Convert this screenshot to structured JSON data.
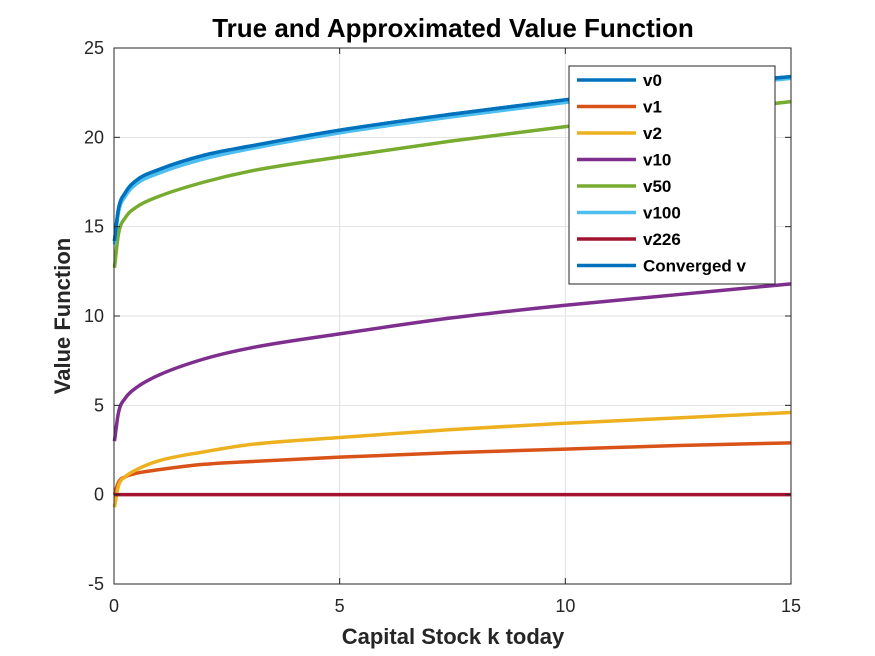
{
  "chart_data": {
    "type": "line",
    "title": "True and Approximated Value Function",
    "xlabel": "Capital Stock k today",
    "ylabel": "Value Function",
    "xlim": [
      0,
      15
    ],
    "ylim": [
      -5,
      25
    ],
    "xticks": [
      0,
      5,
      10,
      15
    ],
    "xtick_labels": [
      "0",
      "5",
      "10",
      "15"
    ],
    "yticks": [
      -5,
      0,
      5,
      10,
      15,
      20,
      25
    ],
    "ytick_labels": [
      "-5",
      "0",
      "5",
      "10",
      "15",
      "20",
      "25"
    ],
    "grid": true,
    "legend_position": "top-right",
    "x": [
      0.01,
      0.1,
      0.25,
      0.5,
      1,
      2,
      3,
      5,
      7.5,
      10,
      12.5,
      15
    ],
    "series": [
      {
        "name": "v0",
        "color": "#0072BD",
        "values": [
          14.2,
          16.0,
          16.9,
          17.6,
          18.2,
          19.0,
          19.5,
          20.4,
          21.3,
          22.1,
          22.8,
          23.4
        ]
      },
      {
        "name": "v1",
        "color": "#D95319",
        "values": [
          0.0,
          0.7,
          1.0,
          1.2,
          1.4,
          1.7,
          1.85,
          2.1,
          2.35,
          2.55,
          2.75,
          2.9
        ]
      },
      {
        "name": "v2",
        "color": "#EDB120",
        "values": [
          -0.7,
          0.5,
          1.0,
          1.4,
          1.9,
          2.4,
          2.8,
          3.2,
          3.65,
          4.0,
          4.3,
          4.6
        ]
      },
      {
        "name": "v10",
        "color": "#7E2F8E",
        "values": [
          3.0,
          4.6,
          5.4,
          6.0,
          6.7,
          7.6,
          8.2,
          9.0,
          9.9,
          10.6,
          11.2,
          11.8
        ]
      },
      {
        "name": "v50",
        "color": "#77AC30",
        "values": [
          12.7,
          14.6,
          15.5,
          16.1,
          16.7,
          17.5,
          18.1,
          18.9,
          19.8,
          20.6,
          21.3,
          22.0
        ]
      },
      {
        "name": "v100",
        "color": "#4DBEEE",
        "values": [
          14.0,
          15.8,
          16.7,
          17.4,
          18.0,
          18.8,
          19.35,
          20.25,
          21.15,
          21.95,
          22.7,
          23.3
        ]
      },
      {
        "name": "v226",
        "color": "#A2142F",
        "values": [
          0.0,
          0.0,
          0.0,
          0.0,
          0.0,
          0.0,
          0.0,
          0.0,
          0.0,
          0.0,
          0.0,
          0.0
        ]
      },
      {
        "name": "Converged v",
        "color": "#0072BD",
        "values": [
          14.2,
          16.0,
          16.9,
          17.6,
          18.2,
          19.0,
          19.5,
          20.4,
          21.3,
          22.1,
          22.8,
          23.4
        ]
      }
    ]
  }
}
